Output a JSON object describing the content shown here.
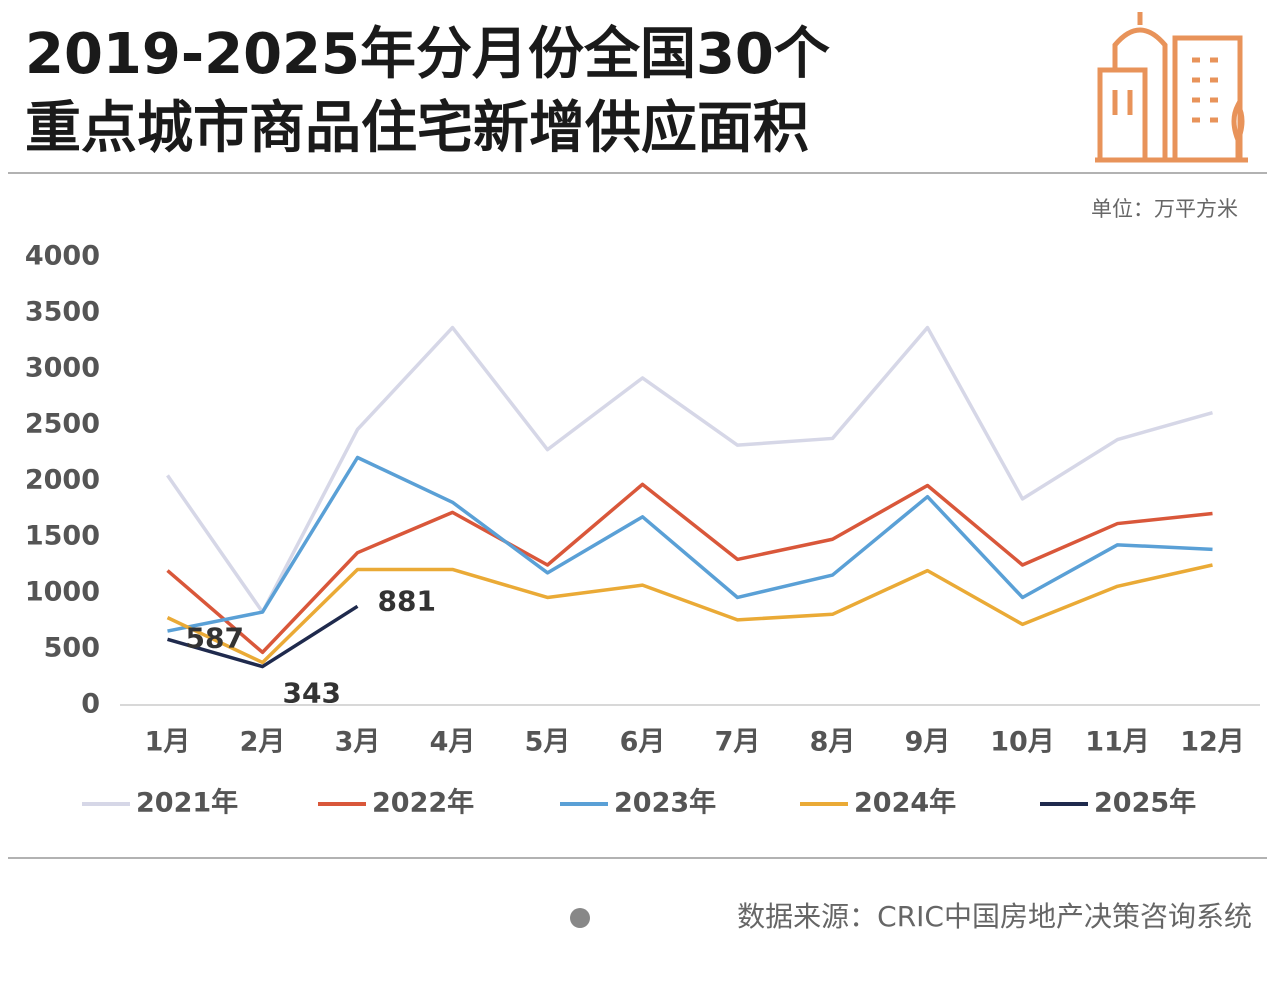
{
  "chart_data": {
    "type": "line",
    "title": [
      "2019-2025年分月份全国30个",
      "重点城市商品住宅新增供应面积"
    ],
    "unit": "单位：万平方米",
    "source": "数据来源：CRIC中国房地产决策咨询系统",
    "categories": [
      "1月",
      "2月",
      "3月",
      "4月",
      "5月",
      "6月",
      "7月",
      "8月",
      "9月",
      "10月",
      "11月",
      "12月"
    ],
    "series": [
      {
        "name": "2021年",
        "color": "#d6d7e7",
        "values": [
          2050,
          830,
          2460,
          3370,
          2280,
          2920,
          2320,
          2380,
          3370,
          1840,
          2370,
          2610
        ]
      },
      {
        "name": "2022年",
        "color": "#d9573a",
        "values": [
          1200,
          470,
          1360,
          1720,
          1250,
          1970,
          1300,
          1480,
          1960,
          1250,
          1620,
          1710
        ]
      },
      {
        "name": "2023年",
        "color": "#5aa0d6",
        "values": [
          660,
          830,
          2210,
          1810,
          1180,
          1680,
          960,
          1160,
          1860,
          960,
          1430,
          1390
        ]
      },
      {
        "name": "2024年",
        "color": "#eaaa36",
        "values": [
          780,
          380,
          1210,
          1210,
          960,
          1070,
          760,
          810,
          1200,
          720,
          1060,
          1250
        ]
      },
      {
        "name": "2025年",
        "color": "#1f2a4d",
        "values": [
          587,
          343,
          881,
          null,
          null,
          null,
          null,
          null,
          null,
          null,
          null,
          null
        ],
        "data_labels": true
      }
    ],
    "ylim": [
      0,
      4000
    ],
    "yticks": [
      0,
      500,
      1000,
      1500,
      2000,
      2500,
      3000,
      3500,
      4000
    ],
    "grid": false
  }
}
